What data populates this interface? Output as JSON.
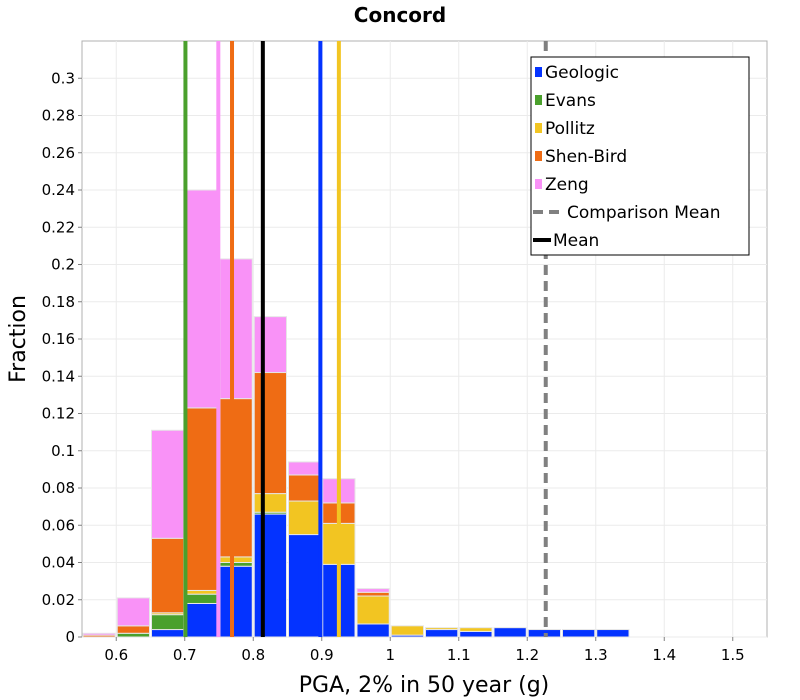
{
  "chart_data": {
    "type": "bar",
    "title": "Concord",
    "xlabel": "PGA, 2% in 50 year (g)",
    "ylabel": "Fraction",
    "xlim": [
      0.55,
      1.55
    ],
    "ylim": [
      0,
      0.32
    ],
    "x_ticks": [
      "0.6",
      "0.7",
      "0.8",
      "0.9",
      "1",
      "1.1",
      "1.2",
      "1.3",
      "1.4",
      "1.5"
    ],
    "y_ticks": [
      "0",
      "0.02",
      "0.04",
      "0.06",
      "0.08",
      "0.1",
      "0.12",
      "0.14",
      "0.16",
      "0.18",
      "0.2",
      "0.22",
      "0.24",
      "0.26",
      "0.28",
      "0.3"
    ],
    "grid": true,
    "stacked": true,
    "bin_width": 0.05,
    "bin_centers": [
      0.575,
      0.625,
      0.675,
      0.725,
      0.775,
      0.825,
      0.875,
      0.925,
      0.975,
      1.025,
      1.075,
      1.125,
      1.175,
      1.225,
      1.275,
      1.325
    ],
    "series": [
      {
        "name": "Geologic",
        "color": "#0433ff",
        "values": [
          0,
          0,
          0.004,
          0.018,
          0.038,
          0.066,
          0.055,
          0.039,
          0.007,
          0.001,
          0.004,
          0.003,
          0.005,
          0.004,
          0.004,
          0.004
        ]
      },
      {
        "name": "Evans",
        "color": "#4aa02c",
        "values": [
          0,
          0.002,
          0.008,
          0.005,
          0.002,
          0.001,
          0,
          0,
          0,
          0,
          0,
          0,
          0,
          0,
          0,
          0
        ]
      },
      {
        "name": "Pollitz",
        "color": "#f2c522",
        "values": [
          0,
          0,
          0.001,
          0.002,
          0.003,
          0.01,
          0.018,
          0.022,
          0.015,
          0.005,
          0.001,
          0.002,
          0,
          0,
          0,
          0
        ]
      },
      {
        "name": "Shen-Bird",
        "color": "#ef6c14",
        "values": [
          0.001,
          0.004,
          0.04,
          0.098,
          0.085,
          0.065,
          0.014,
          0.011,
          0.002,
          0,
          0,
          0,
          0,
          0,
          0,
          0
        ]
      },
      {
        "name": "Zeng",
        "color": "#f992f7",
        "values": [
          0.001,
          0.015,
          0.058,
          0.117,
          0.075,
          0.03,
          0.007,
          0.013,
          0.002,
          0,
          0,
          0,
          0,
          0,
          0,
          0
        ]
      }
    ],
    "vertical_lines": [
      {
        "name": "Evans",
        "x": 0.701,
        "color": "#4aa02c",
        "style": "solid"
      },
      {
        "name": "Zeng",
        "x": 0.749,
        "color": "#f992f7",
        "style": "solid"
      },
      {
        "name": "Shen-Bird",
        "x": 0.769,
        "color": "#ef6c14",
        "style": "solid"
      },
      {
        "name": "Mean",
        "x": 0.814,
        "color": "#000000",
        "style": "solid"
      },
      {
        "name": "Geologic",
        "x": 0.898,
        "color": "#0433ff",
        "style": "solid"
      },
      {
        "name": "Pollitz",
        "x": 0.925,
        "color": "#f2c522",
        "style": "solid"
      },
      {
        "name": "Comparison Mean",
        "x": 1.227,
        "color": "#808080",
        "style": "dashed"
      }
    ],
    "legend": {
      "position": "top-right",
      "entries": [
        {
          "label": "Geologic",
          "color": "#0433ff",
          "kind": "box"
        },
        {
          "label": "Evans",
          "color": "#4aa02c",
          "kind": "box"
        },
        {
          "label": "Pollitz",
          "color": "#f2c522",
          "kind": "box"
        },
        {
          "label": "Shen-Bird",
          "color": "#ef6c14",
          "kind": "box"
        },
        {
          "label": "Zeng",
          "color": "#f992f7",
          "kind": "box"
        },
        {
          "label": "Comparison Mean",
          "color": "#808080",
          "kind": "dashed-line"
        },
        {
          "label": "Mean",
          "color": "#000000",
          "kind": "solid-line"
        }
      ]
    }
  }
}
